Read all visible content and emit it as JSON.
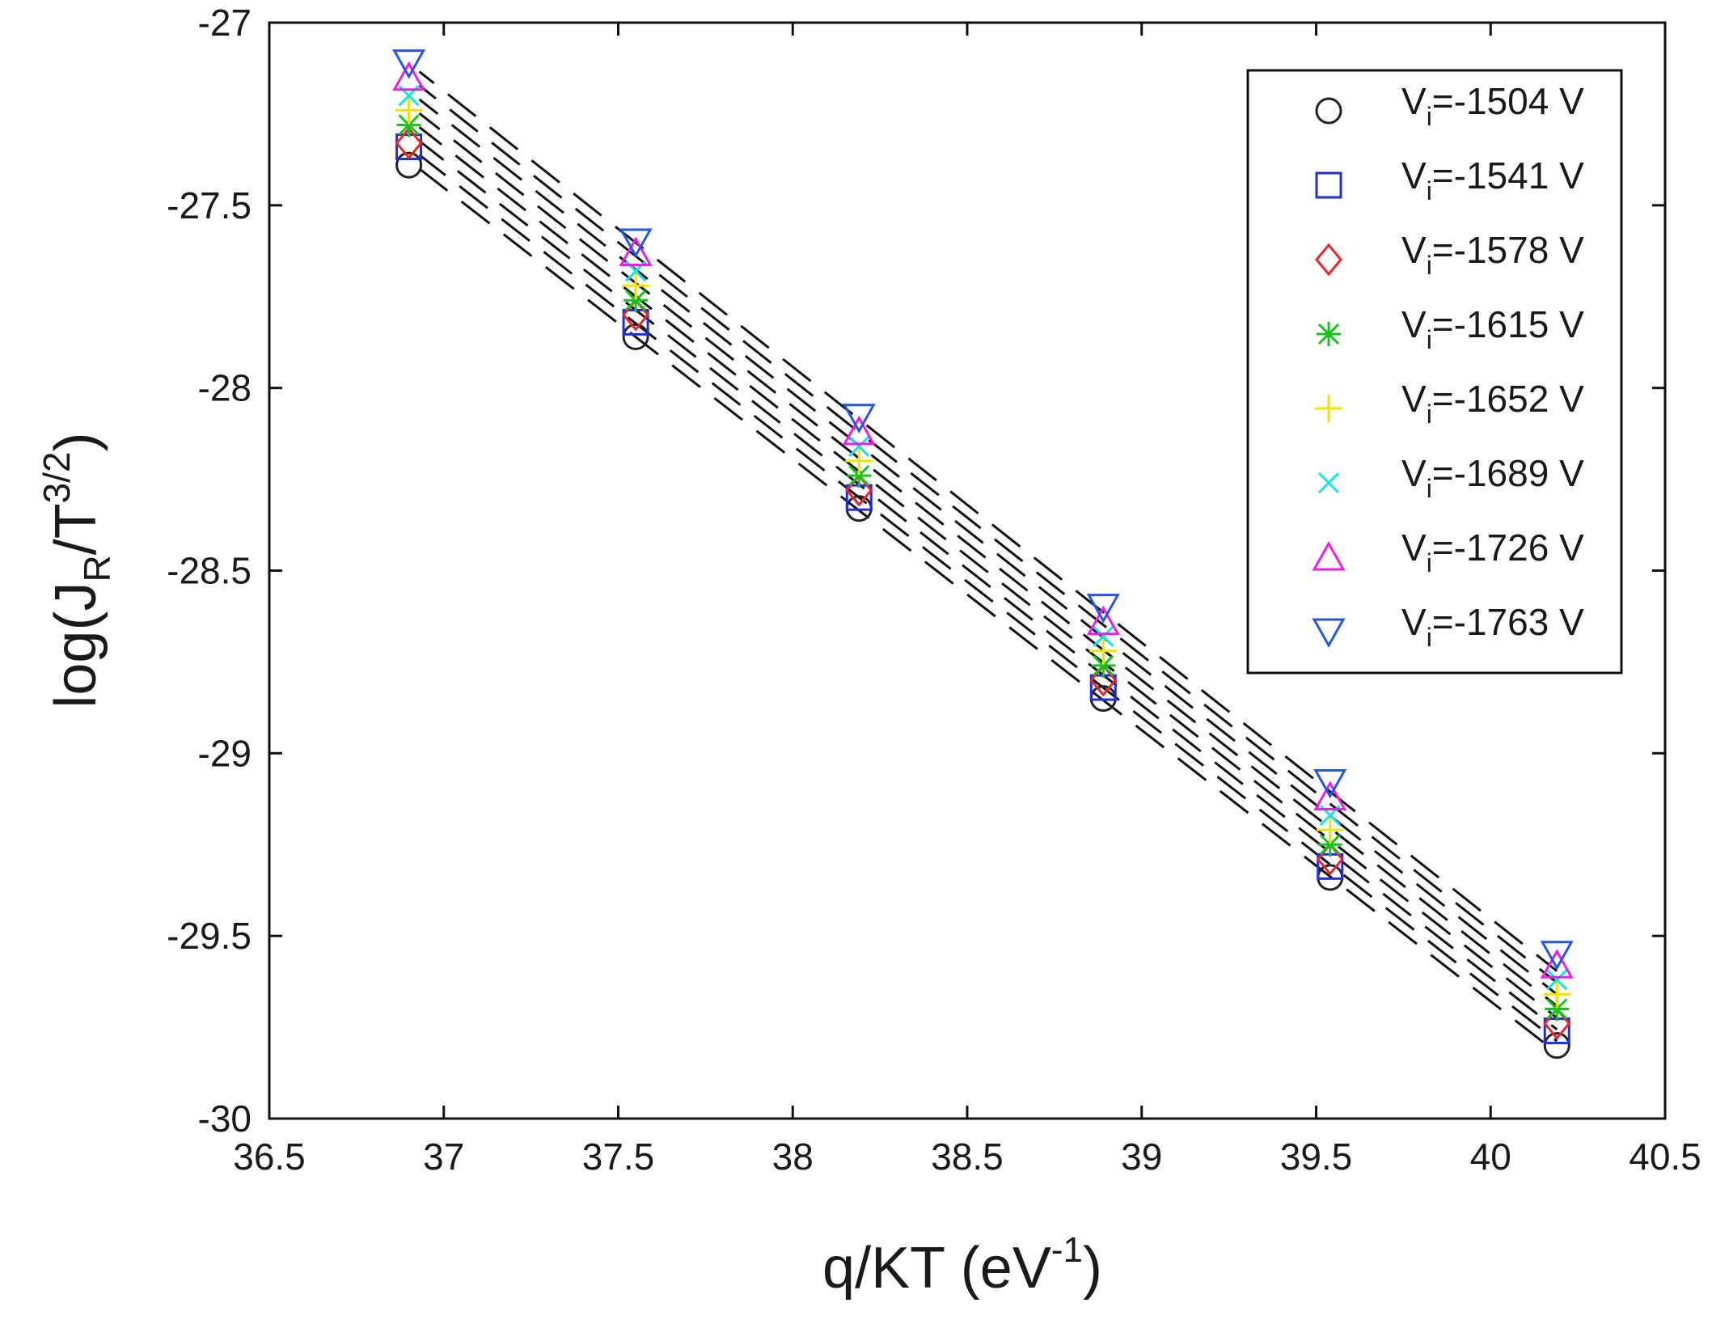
{
  "chart_data": {
    "type": "scatter",
    "x": [
      36.9,
      37.55,
      38.19,
      38.89,
      39.54,
      40.19
    ],
    "series": [
      {
        "name": "V",
        "sub": "i",
        "label": "=-1504 V",
        "marker": "circle",
        "color": "#222222",
        "values": [
          -27.39,
          -27.86,
          -28.33,
          -28.85,
          -29.34,
          -29.8
        ]
      },
      {
        "name": "V",
        "sub": "i",
        "label": "=-1541 V",
        "marker": "square",
        "color": "#1f2fd6",
        "values": [
          -27.34,
          -27.82,
          -28.3,
          -28.82,
          -29.31,
          -29.76
        ]
      },
      {
        "name": "V",
        "sub": "i",
        "label": "=-1578 V",
        "marker": "diamond",
        "color": "#e8262b",
        "values": [
          -27.33,
          -27.8,
          -28.28,
          -28.8,
          -29.29,
          -29.74
        ]
      },
      {
        "name": "V",
        "sub": "i",
        "label": "=-1615 V",
        "marker": "asterisk",
        "color": "#18c21e",
        "values": [
          -27.28,
          -27.76,
          -28.24,
          -28.76,
          -29.25,
          -29.7
        ]
      },
      {
        "name": "V",
        "sub": "i",
        "label": "=-1652 V",
        "marker": "plus",
        "color": "#f2e400",
        "values": [
          -27.24,
          -27.72,
          -28.2,
          -28.72,
          -29.21,
          -29.66
        ]
      },
      {
        "name": "V",
        "sub": "i",
        "label": "=-1689 V",
        "marker": "cross",
        "color": "#14e3f0",
        "values": [
          -27.2,
          -27.68,
          -28.16,
          -28.68,
          -29.17,
          -29.62
        ]
      },
      {
        "name": "V",
        "sub": "i",
        "label": "=-1726 V",
        "marker": "triangle-up",
        "color": "#ee1ee6",
        "values": [
          -27.15,
          -27.63,
          -28.12,
          -28.64,
          -29.12,
          -29.58
        ]
      },
      {
        "name": "V",
        "sub": "i",
        "label": "=-1763 V",
        "marker": "triangle-down",
        "color": "#2256e3",
        "values": [
          -27.11,
          -27.6,
          -28.08,
          -28.6,
          -29.08,
          -29.55
        ]
      }
    ],
    "fit_lines": {
      "style": "dashed",
      "color": "#111111",
      "x_range": [
        36.93,
        40.19
      ],
      "intercepts_at_start": [
        -27.4,
        -27.362,
        -27.324,
        -27.286,
        -27.248,
        -27.21,
        -27.172,
        -27.134
      ],
      "intercepts_at_end": [
        -29.82,
        -29.788,
        -29.756,
        -29.724,
        -29.692,
        -29.66,
        -29.628,
        -29.596
      ]
    },
    "xlabel": "q/KT (eV",
    "xlabel_sup": "-1",
    "xlabel_close": ")",
    "ylabel": "log(J",
    "ylabel_sub": "R",
    "ylabel_mid": "/T",
    "ylabel_sup": "3/2",
    "ylabel_close": ")",
    "xlim": [
      36.5,
      40.5
    ],
    "ylim": [
      -30,
      -27
    ],
    "xticks": [
      36.5,
      37,
      37.5,
      38,
      38.5,
      39,
      39.5,
      40,
      40.5
    ],
    "xtick_labels": [
      "36.5",
      "37",
      "37.5",
      "38",
      "38.5",
      "39",
      "39.5",
      "40",
      "40.5"
    ],
    "yticks": [
      -30,
      -29.5,
      -29,
      -28.5,
      -28,
      -27.5,
      -27
    ],
    "ytick_labels": [
      "-30",
      "-29.5",
      "-29",
      "-28.5",
      "-28",
      "-27.5",
      "-27"
    ],
    "grid": false,
    "legend_position": "top-right"
  }
}
